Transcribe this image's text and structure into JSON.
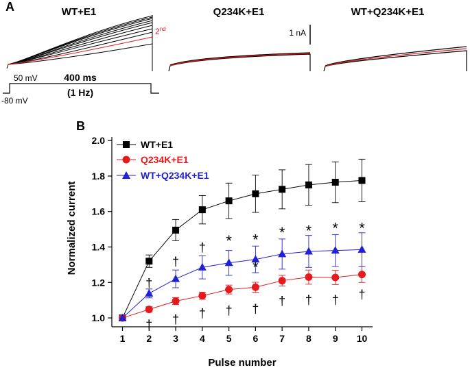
{
  "panel_a": {
    "label": "A",
    "trace_titles": [
      "WT+E1",
      "Q234K+E1",
      "WT+Q234K+E1"
    ],
    "second_pulse_label": "2",
    "second_pulse_sup": "nd",
    "scale_bar_label": "1 nA",
    "protocol": {
      "step_voltage": "50 mV",
      "holding_voltage": "-80 mV",
      "duration": "400 ms",
      "frequency": "(1 Hz)"
    },
    "colors": {
      "trace": "#000000",
      "second_pulse": "#e41a1c"
    }
  },
  "chart_data": {
    "panel_label": "B",
    "type": "line",
    "xlabel": "Pulse number",
    "ylabel": "Normalized current",
    "x": [
      1,
      2,
      3,
      4,
      5,
      6,
      7,
      8,
      9,
      10
    ],
    "xlim": [
      0.6,
      10.4
    ],
    "ylim": [
      0.95,
      2.02
    ],
    "yticks": [
      1.0,
      1.2,
      1.4,
      1.6,
      1.8,
      2.0
    ],
    "ytick_labels": [
      "1.0",
      "1.2",
      "1.4",
      "1.6",
      "1.8",
      "2.0"
    ],
    "xtick_labels": [
      "1",
      "2",
      "3",
      "4",
      "5",
      "6",
      "7",
      "8",
      "9",
      "10"
    ],
    "series": [
      {
        "name": "WT+E1",
        "color": "#000000",
        "marker": "square",
        "values": [
          1.0,
          1.32,
          1.495,
          1.61,
          1.66,
          1.7,
          1.725,
          1.75,
          1.765,
          1.775
        ],
        "errors": [
          0.0,
          0.035,
          0.06,
          0.08,
          0.1,
          0.105,
          0.11,
          0.115,
          0.115,
          0.12
        ]
      },
      {
        "name": "Q234K+E1",
        "color": "#e41a1c",
        "marker": "circle",
        "values": [
          1.0,
          1.048,
          1.095,
          1.125,
          1.16,
          1.173,
          1.21,
          1.23,
          1.228,
          1.245
        ],
        "errors": [
          0.0,
          0.015,
          0.02,
          0.02,
          0.025,
          0.028,
          0.03,
          0.04,
          0.04,
          0.045
        ]
      },
      {
        "name": "WT+Q234K+E1",
        "color": "#1f1fd6",
        "marker": "triangle",
        "values": [
          1.0,
          1.138,
          1.22,
          1.285,
          1.31,
          1.33,
          1.36,
          1.375,
          1.38,
          1.385
        ],
        "errors": [
          0.0,
          0.025,
          0.05,
          0.065,
          0.07,
          0.075,
          0.085,
          0.09,
          0.09,
          0.095
        ]
      }
    ],
    "legend_location": "top-left",
    "annotations": [
      {
        "text": "*",
        "x": 5,
        "y": 1.445
      },
      {
        "text": "*",
        "x": 6,
        "y": 1.45
      },
      {
        "text": "*",
        "x": 7,
        "y": 1.49
      },
      {
        "text": "*",
        "x": 8,
        "y": 1.5
      },
      {
        "text": "*",
        "x": 9,
        "y": 1.515
      },
      {
        "text": "*",
        "x": 10,
        "y": 1.515
      },
      {
        "text": "*",
        "x": 6,
        "y": 1.295
      },
      {
        "text": "†",
        "x": 2,
        "y": 1.2
      },
      {
        "text": "†",
        "x": 3,
        "y": 1.32
      },
      {
        "text": "†",
        "x": 4,
        "y": 1.4
      },
      {
        "text": "†",
        "x": 5,
        "y": 1.045
      },
      {
        "text": "†",
        "x": 6,
        "y": 1.055
      },
      {
        "text": "†",
        "x": 7,
        "y": 1.098
      },
      {
        "text": "†",
        "x": 8,
        "y": 1.105
      },
      {
        "text": "†",
        "x": 9,
        "y": 1.105
      },
      {
        "text": "†",
        "x": 10,
        "y": 1.135
      },
      {
        "text": "†",
        "x": 2,
        "y": 0.965
      },
      {
        "text": "†",
        "x": 3,
        "y": 0.995
      },
      {
        "text": "†",
        "x": 4,
        "y": 1.03
      }
    ]
  }
}
